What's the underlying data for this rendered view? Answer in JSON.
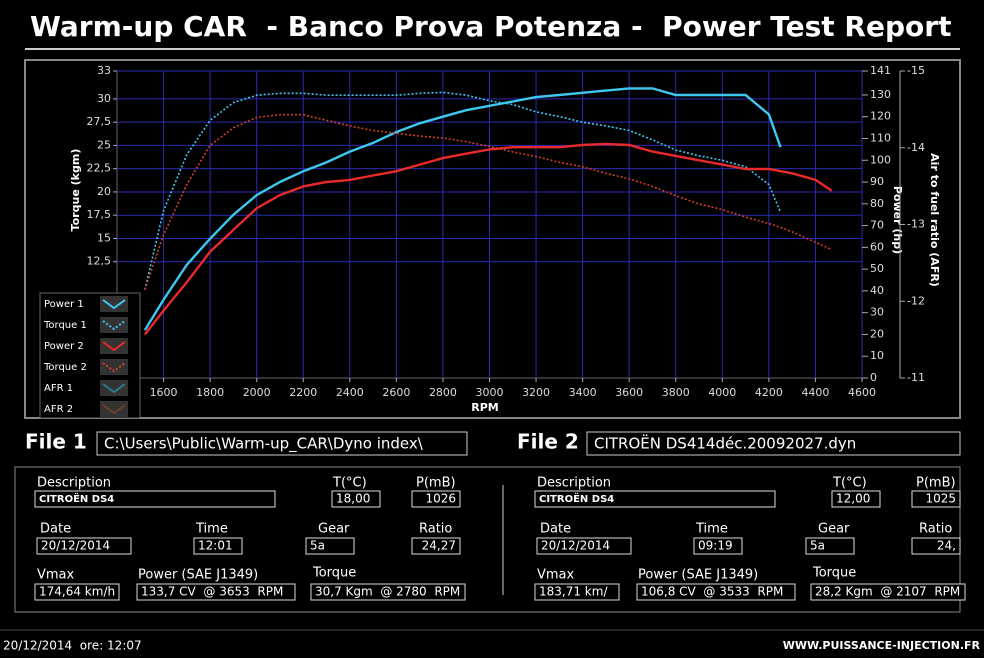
{
  "header": {
    "title": "Warm-up CAR  - Banco Prova Potenza -  Power Test Report"
  },
  "chart_data": {
    "type": "line",
    "xlabel": "RPM",
    "ylabel": "Torque (kgm)",
    "y2label": "Power (hp)",
    "y3label": "Air to fuel ratio (AFR)",
    "x": [
      1520,
      1600,
      1700,
      1800,
      1900,
      2000,
      2100,
      2200,
      2300,
      2400,
      2500,
      2600,
      2700,
      2800,
      2900,
      3000,
      3100,
      3200,
      3300,
      3400,
      3500,
      3600,
      3700,
      3800,
      3900,
      4000,
      4100,
      4200,
      4250,
      4300,
      4400,
      4470
    ],
    "xlim": [
      1400,
      4600
    ],
    "xticks": [
      1600,
      1800,
      2000,
      2200,
      2400,
      2600,
      2800,
      3000,
      3200,
      3400,
      3600,
      3800,
      4000,
      4200,
      4400,
      4600
    ],
    "ylim": [
      0,
      33
    ],
    "yticks": [
      {
        "value": 12.5,
        "label": "12,5"
      },
      15,
      {
        "value": 17.5,
        "label": "17,5"
      },
      20,
      {
        "value": 22.5,
        "label": "22,5"
      },
      25,
      {
        "value": 27.5,
        "label": "27,5"
      },
      30,
      33
    ],
    "y2lim": [
      0,
      141
    ],
    "y2ticks": [
      0,
      10,
      20,
      30,
      40,
      50,
      60,
      70,
      80,
      90,
      100,
      110,
      120,
      130,
      141
    ],
    "y3lim": [
      -11,
      -15
    ],
    "y3ticks": [
      -11,
      -12,
      -13,
      -14,
      -15
    ],
    "grid": true,
    "series": [
      {
        "name": "Power 1",
        "color": "#3ec8f0",
        "dash": "solid",
        "axis": "y2",
        "values": [
          22,
          36,
          52,
          64,
          75,
          84,
          90,
          95,
          99,
          104,
          108,
          113,
          117,
          120,
          123,
          125,
          127,
          129,
          130,
          131,
          132,
          133,
          133,
          130,
          130,
          130,
          130,
          121,
          106,
          null,
          null,
          null
        ]
      },
      {
        "name": "Torque 1",
        "color": "#3ec8f0",
        "dash": "dotted",
        "axis": "y",
        "values": [
          9.5,
          18,
          24,
          27.7,
          29.6,
          30.4,
          30.6,
          30.6,
          30.4,
          30.4,
          30.4,
          30.4,
          30.6,
          30.7,
          30.4,
          29.8,
          29.4,
          28.6,
          28.1,
          27.5,
          27.1,
          26.6,
          25.6,
          24.5,
          23.9,
          23.4,
          22.7,
          20.8,
          17.8,
          null,
          null,
          null
        ]
      },
      {
        "name": "Power 2",
        "color": "#e82a2a",
        "dash": "solid",
        "axis": "y2",
        "values": [
          20,
          31,
          44,
          58,
          68,
          78,
          84,
          88,
          90,
          91,
          93,
          95,
          98,
          101,
          103,
          105,
          106,
          106,
          106,
          107,
          107.5,
          107,
          104,
          102,
          100,
          98,
          96,
          96,
          95,
          94,
          91,
          86
        ]
      },
      {
        "name": "Torque 2",
        "color": "#d0402a",
        "dash": "dotted",
        "axis": "y",
        "values": [
          9.5,
          15.4,
          20.8,
          25,
          26.9,
          28,
          28.3,
          28.3,
          27.7,
          27.1,
          26.6,
          26.3,
          26,
          25.8,
          25.4,
          24.9,
          24.3,
          23.8,
          23.2,
          22.7,
          22,
          21.4,
          20.6,
          19.6,
          18.7,
          18.1,
          17.3,
          16.6,
          16.2,
          15.7,
          14.6,
          13.8
        ]
      },
      {
        "name": "AFR 1",
        "color": "#2a7d8c",
        "dash": "solid",
        "axis": "y3",
        "values": [
          null,
          null,
          null,
          null,
          null,
          null,
          null,
          null,
          null,
          null,
          null,
          null,
          null,
          null,
          null,
          null,
          null,
          null,
          null,
          null,
          null,
          null,
          null,
          null,
          null,
          null,
          null,
          null,
          null,
          null,
          null,
          null
        ]
      },
      {
        "name": "AFR 2",
        "color": "#6a4030",
        "dash": "solid",
        "axis": "y3",
        "values": [
          null,
          null,
          null,
          null,
          null,
          null,
          null,
          null,
          null,
          null,
          null,
          null,
          null,
          null,
          null,
          null,
          null,
          null,
          null,
          null,
          null,
          null,
          null,
          null,
          null,
          null,
          null,
          null,
          null,
          null,
          null,
          null
        ]
      }
    ]
  },
  "files": [
    {
      "title": "File 1",
      "path": "C:\\Users\\Public\\Warm-up_CAR\\Dyno index\\",
      "fields": [
        {
          "label": "Description",
          "value": "CITROËN DS4"
        },
        {
          "label": "T(°C)",
          "value": "18,00"
        },
        {
          "label": "P(mB)",
          "value": "1026"
        },
        {
          "label": "Date",
          "value": "20/12/2014"
        },
        {
          "label": "Time",
          "value": "12:01"
        },
        {
          "label": "Gear",
          "value": "5a"
        },
        {
          "label": "Ratio",
          "value": "24,27"
        },
        {
          "label": "Vmax",
          "value": "174,64 km/h"
        },
        {
          "label": "Power (SAE J1349)",
          "value": "133,7 CV  @ 3653  RPM"
        },
        {
          "label": "Torque",
          "value": "30,7 Kgm  @ 2780  RPM"
        }
      ]
    },
    {
      "title": "File 2",
      "path": "CITROËN DS414déc.20092027.dyn",
      "fields": [
        {
          "label": "Description",
          "value": "CITROËN DS4"
        },
        {
          "label": "T(°C)",
          "value": "12,00"
        },
        {
          "label": "P(mB)",
          "value": "1025"
        },
        {
          "label": "Date",
          "value": "20/12/2014"
        },
        {
          "label": "Time",
          "value": "09:19"
        },
        {
          "label": "Gear",
          "value": "5a"
        },
        {
          "label": "Ratio",
          "value": "24,"
        },
        {
          "label": "Vmax",
          "value": "183,71 km/"
        },
        {
          "label": "Power (SAE J1349)",
          "value": "106,8 CV  @ 3533  RPM"
        },
        {
          "label": "Torque",
          "value": "28,2 Kgm  @ 2107  RPM"
        }
      ]
    }
  ],
  "footer": {
    "timestamp": "20/12/2014  ore: 12:07",
    "website": "WWW.PUISSANCE-INJECTION.FR"
  }
}
